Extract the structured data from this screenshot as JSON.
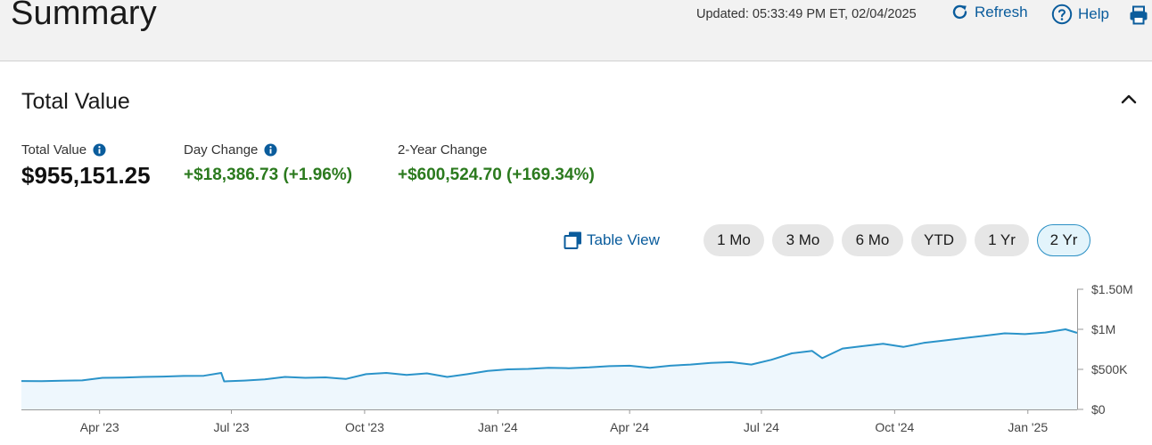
{
  "header": {
    "title": "Summary",
    "updated": "Updated: 05:33:49 PM ET, 02/04/2025",
    "refresh_label": "Refresh",
    "help_label": "Help",
    "icons": {
      "refresh": "refresh-icon",
      "help": "help-circle-icon",
      "print": "print-icon"
    }
  },
  "section": {
    "title": "Total Value",
    "collapse_icon": "chevron-up-icon"
  },
  "metrics": {
    "total_value": {
      "label": "Total Value",
      "value": "$955,151.25"
    },
    "day_change": {
      "label": "Day Change",
      "value": "+$18,386.73 (+1.96%)"
    },
    "two_year_change": {
      "label": "2-Year Change",
      "value": "+$600,524.70 (+169.34%)"
    }
  },
  "controls": {
    "table_view_label": "Table View",
    "ranges": [
      "1 Mo",
      "3 Mo",
      "6 Mo",
      "YTD",
      "1 Yr",
      "2 Yr"
    ],
    "selected_range": "2 Yr"
  },
  "colors": {
    "accent": "#0a5c9c",
    "positive": "#2b7a1e",
    "line": "#2a93c9",
    "fill": "#eef7fd"
  },
  "chart_data": {
    "type": "area",
    "x_start": "2023-02-06",
    "x_end": "2025-02-04",
    "x_ticks": [
      {
        "date": "2023-04-01",
        "label": "Apr '23"
      },
      {
        "date": "2023-07-01",
        "label": "Jul '23"
      },
      {
        "date": "2023-10-01",
        "label": "Oct '23"
      },
      {
        "date": "2024-01-01",
        "label": "Jan '24"
      },
      {
        "date": "2024-04-01",
        "label": "Apr '24"
      },
      {
        "date": "2024-07-01",
        "label": "Jul '24"
      },
      {
        "date": "2024-10-01",
        "label": "Oct '24"
      },
      {
        "date": "2025-01-01",
        "label": "Jan '25"
      }
    ],
    "y_ticks": [
      {
        "value": 0,
        "label": "$0"
      },
      {
        "value": 500000,
        "label": "$500K"
      },
      {
        "value": 1000000,
        "label": "$1M"
      },
      {
        "value": 1500000,
        "label": "$1.50M"
      }
    ],
    "ylim": [
      0,
      1500000
    ],
    "grid": false,
    "series": [
      {
        "points": [
          [
            "2023-02-06",
            355000
          ],
          [
            "2023-02-20",
            352000
          ],
          [
            "2023-03-06",
            358000
          ],
          [
            "2023-03-20",
            362000
          ],
          [
            "2023-04-03",
            395000
          ],
          [
            "2023-04-17",
            398000
          ],
          [
            "2023-05-01",
            405000
          ],
          [
            "2023-05-15",
            410000
          ],
          [
            "2023-05-29",
            418000
          ],
          [
            "2023-06-12",
            420000
          ],
          [
            "2023-06-24",
            455000
          ],
          [
            "2023-06-26",
            350000
          ],
          [
            "2023-07-10",
            360000
          ],
          [
            "2023-07-24",
            375000
          ],
          [
            "2023-08-07",
            405000
          ],
          [
            "2023-08-21",
            395000
          ],
          [
            "2023-09-04",
            400000
          ],
          [
            "2023-09-18",
            380000
          ],
          [
            "2023-10-02",
            440000
          ],
          [
            "2023-10-16",
            455000
          ],
          [
            "2023-10-30",
            430000
          ],
          [
            "2023-11-13",
            450000
          ],
          [
            "2023-11-27",
            405000
          ],
          [
            "2023-12-11",
            440000
          ],
          [
            "2023-12-25",
            480000
          ],
          [
            "2024-01-08",
            500000
          ],
          [
            "2024-01-22",
            505000
          ],
          [
            "2024-02-05",
            520000
          ],
          [
            "2024-02-19",
            515000
          ],
          [
            "2024-03-04",
            525000
          ],
          [
            "2024-03-18",
            540000
          ],
          [
            "2024-04-01",
            545000
          ],
          [
            "2024-04-15",
            520000
          ],
          [
            "2024-04-29",
            545000
          ],
          [
            "2024-05-13",
            560000
          ],
          [
            "2024-05-27",
            580000
          ],
          [
            "2024-06-10",
            590000
          ],
          [
            "2024-06-24",
            560000
          ],
          [
            "2024-07-08",
            620000
          ],
          [
            "2024-07-22",
            700000
          ],
          [
            "2024-08-05",
            730000
          ],
          [
            "2024-08-12",
            640000
          ],
          [
            "2024-08-26",
            760000
          ],
          [
            "2024-09-09",
            790000
          ],
          [
            "2024-09-23",
            820000
          ],
          [
            "2024-10-07",
            780000
          ],
          [
            "2024-10-21",
            830000
          ],
          [
            "2024-11-04",
            860000
          ],
          [
            "2024-11-18",
            890000
          ],
          [
            "2024-12-02",
            920000
          ],
          [
            "2024-12-16",
            950000
          ],
          [
            "2024-12-30",
            940000
          ],
          [
            "2025-01-13",
            960000
          ],
          [
            "2025-01-27",
            1000000
          ],
          [
            "2025-02-04",
            955151
          ]
        ]
      }
    ]
  }
}
